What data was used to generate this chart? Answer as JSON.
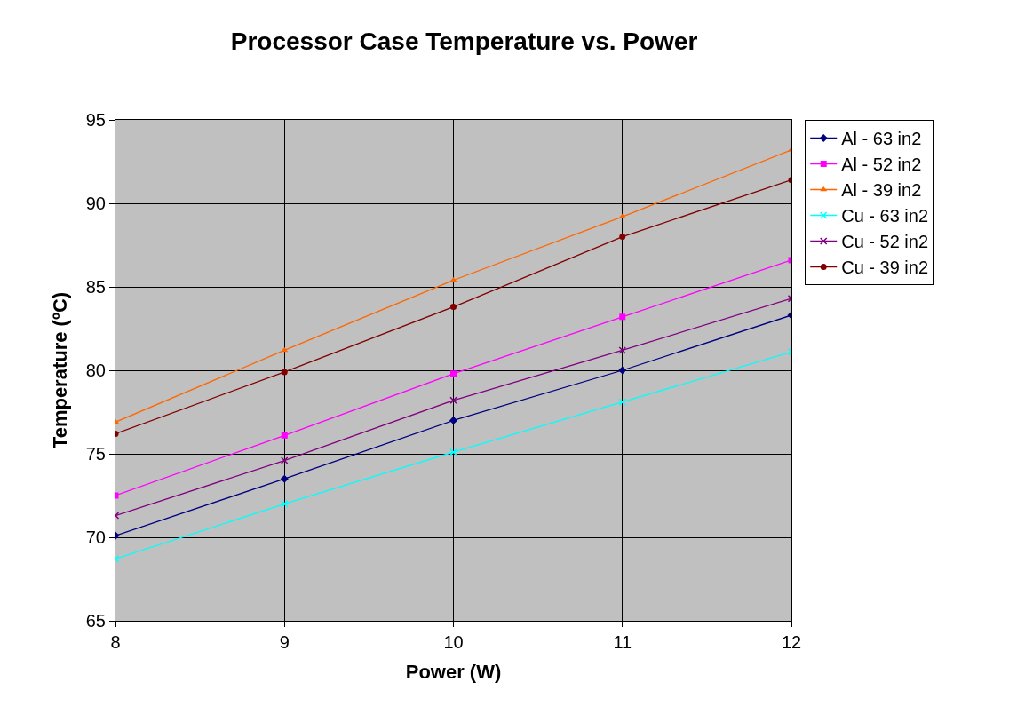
{
  "chart_data": {
    "type": "line",
    "title": "Processor Case Temperature vs. Power",
    "xlabel": "Power (W)",
    "ylabel": "Temperature (ºC)",
    "x": [
      8,
      9,
      10,
      11,
      12
    ],
    "xlim": [
      8,
      12
    ],
    "xticks": [
      8,
      9,
      10,
      11,
      12
    ],
    "ylim": [
      65,
      95
    ],
    "yticks": [
      65,
      70,
      75,
      80,
      85,
      90,
      95
    ],
    "grid": true,
    "legend": "right",
    "line_style": "solid",
    "series": [
      {
        "name": "Al - 63 in2",
        "color": "#000080",
        "marker": "diamond",
        "values": [
          70.1,
          73.5,
          77.0,
          80.0,
          83.3
        ]
      },
      {
        "name": "Al - 52 in2",
        "color": "#ff00ff",
        "marker": "square",
        "values": [
          72.5,
          76.1,
          79.8,
          83.2,
          86.6
        ]
      },
      {
        "name": "Al - 39 in2",
        "color": "#ff6600",
        "marker": "triangle",
        "values": [
          76.9,
          81.2,
          85.4,
          89.2,
          93.2
        ]
      },
      {
        "name": "Cu - 63 in2",
        "color": "#00ffff",
        "marker": "cross",
        "values": [
          68.7,
          72.0,
          75.1,
          78.1,
          81.1
        ]
      },
      {
        "name": "Cu - 52 in2",
        "color": "#800080",
        "marker": "cross",
        "values": [
          71.3,
          74.6,
          78.2,
          81.2,
          84.3
        ]
      },
      {
        "name": "Cu - 39 in2",
        "color": "#800000",
        "marker": "circle",
        "values": [
          76.2,
          79.9,
          83.8,
          88.0,
          91.4
        ]
      }
    ]
  }
}
